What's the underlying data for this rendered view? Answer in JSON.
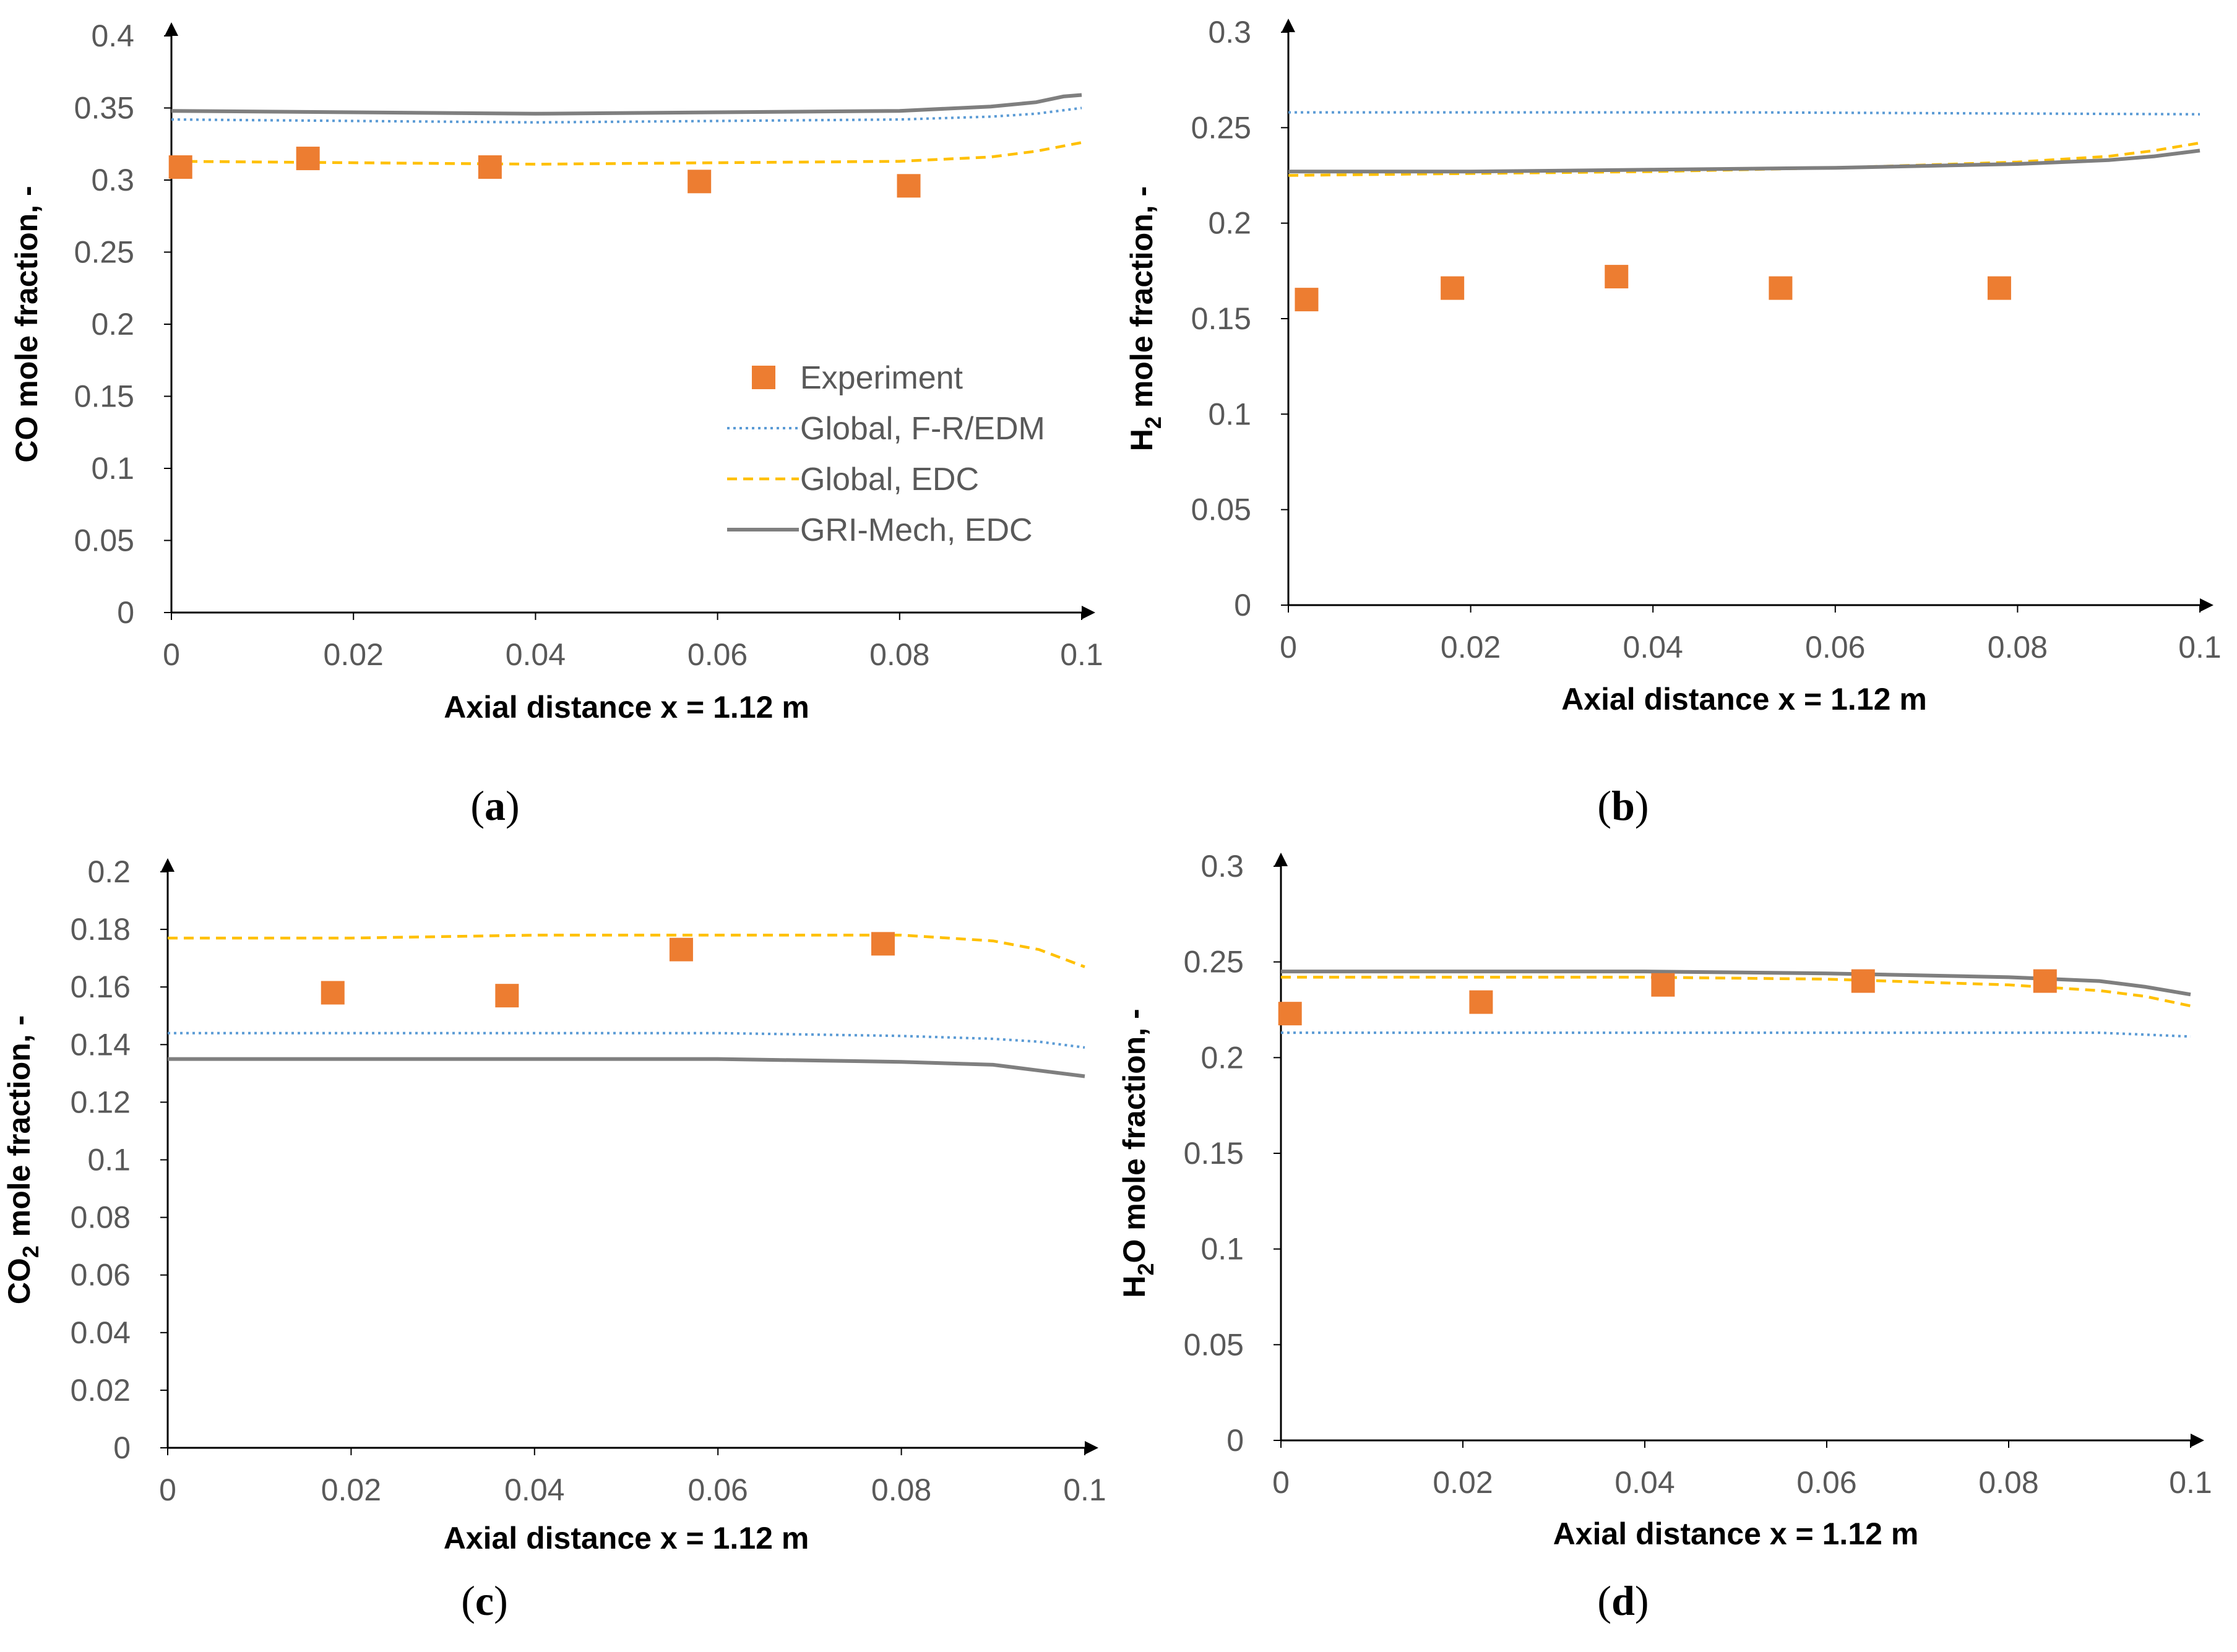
{
  "colors": {
    "experiment": "#ED7D31",
    "global_fr_edm": "#5B9BD5",
    "global_edc": "#FFC000",
    "gri_mech_edc": "#7F7F7F",
    "axis": "#000000",
    "tick_text": "#595959"
  },
  "chart_data": [
    {
      "id": "a",
      "type": "line",
      "caption_letter": "a",
      "ylabel": "CO mole fraction, -",
      "xlabel": "Axial distance x = 1.12 m",
      "xlim": [
        0,
        0.1
      ],
      "ylim": [
        0,
        0.4
      ],
      "xticks": [
        "0",
        "0.02",
        "0.04",
        "0.06",
        "0.08",
        "0.1"
      ],
      "yticks": [
        "0",
        "0.05",
        "0.1",
        "0.15",
        "0.2",
        "0.25",
        "0.3",
        "0.35",
        "0.4"
      ],
      "legend": [
        "Experiment",
        "Global, F-R/EDM",
        "Global, EDC",
        "GRI-Mech, EDC"
      ],
      "series": [
        {
          "name": "Experiment",
          "kind": "scatter",
          "x": [
            0.001,
            0.015,
            0.035,
            0.058,
            0.081
          ],
          "y": [
            0.309,
            0.315,
            0.309,
            0.299,
            0.296
          ]
        },
        {
          "name": "Global, F-R/EDM",
          "kind": "dotted",
          "x": [
            0,
            0.02,
            0.04,
            0.06,
            0.08,
            0.09,
            0.095,
            0.1
          ],
          "y": [
            0.342,
            0.341,
            0.34,
            0.341,
            0.342,
            0.344,
            0.346,
            0.35
          ]
        },
        {
          "name": "Global, EDC",
          "kind": "dashed",
          "x": [
            0,
            0.02,
            0.04,
            0.06,
            0.08,
            0.09,
            0.095,
            0.1
          ],
          "y": [
            0.313,
            0.312,
            0.311,
            0.312,
            0.313,
            0.316,
            0.32,
            0.326
          ]
        },
        {
          "name": "GRI-Mech, EDC",
          "kind": "solid",
          "x": [
            0,
            0.02,
            0.04,
            0.06,
            0.08,
            0.09,
            0.095,
            0.098,
            0.1
          ],
          "y": [
            0.348,
            0.347,
            0.346,
            0.347,
            0.348,
            0.351,
            0.354,
            0.358,
            0.359
          ]
        }
      ]
    },
    {
      "id": "b",
      "type": "line",
      "caption_letter": "b",
      "ylabel": "H2 mole fraction, -",
      "xlabel": "Axial distance x = 1.12 m",
      "xlim": [
        0,
        0.1
      ],
      "ylim": [
        0,
        0.3
      ],
      "xticks": [
        "0",
        "0.02",
        "0.04",
        "0.06",
        "0.08",
        "0.1"
      ],
      "yticks": [
        "0",
        "0.05",
        "0.1",
        "0.15",
        "0.2",
        "0.25",
        "0.3"
      ],
      "series": [
        {
          "name": "Experiment",
          "kind": "scatter",
          "x": [
            0.002,
            0.018,
            0.036,
            0.054,
            0.078
          ],
          "y": [
            0.16,
            0.166,
            0.172,
            0.166,
            0.166
          ]
        },
        {
          "name": "Global, F-R/EDM",
          "kind": "dotted",
          "x": [
            0,
            0.05,
            0.1
          ],
          "y": [
            0.258,
            0.258,
            0.257
          ]
        },
        {
          "name": "Global, EDC",
          "kind": "dashed",
          "x": [
            0,
            0.02,
            0.04,
            0.06,
            0.08,
            0.09,
            0.095,
            0.1
          ],
          "y": [
            0.225,
            0.226,
            0.227,
            0.229,
            0.232,
            0.235,
            0.238,
            0.242
          ]
        },
        {
          "name": "GRI-Mech, EDC",
          "kind": "solid",
          "x": [
            0,
            0.02,
            0.04,
            0.06,
            0.08,
            0.09,
            0.095,
            0.1
          ],
          "y": [
            0.227,
            0.227,
            0.228,
            0.229,
            0.231,
            0.233,
            0.235,
            0.238
          ]
        }
      ]
    },
    {
      "id": "c",
      "type": "line",
      "caption_letter": "c",
      "ylabel": "CO2 mole fraction, -",
      "xlabel": "Axial distance x = 1.12 m",
      "xlim": [
        0,
        0.1
      ],
      "ylim": [
        0,
        0.2
      ],
      "xticks": [
        "0",
        "0.02",
        "0.04",
        "0.06",
        "0.08",
        "0.1"
      ],
      "yticks": [
        "0",
        "0.02",
        "0.04",
        "0.06",
        "0.08",
        "0.1",
        "0.12",
        "0.14",
        "0.16",
        "0.18",
        "0.2"
      ],
      "series": [
        {
          "name": "Experiment",
          "kind": "scatter",
          "x": [
            0.018,
            0.037,
            0.056,
            0.078
          ],
          "y": [
            0.158,
            0.157,
            0.173,
            0.175
          ]
        },
        {
          "name": "Global, F-R/EDM",
          "kind": "dotted",
          "x": [
            0,
            0.02,
            0.04,
            0.06,
            0.08,
            0.09,
            0.095,
            0.1
          ],
          "y": [
            0.144,
            0.144,
            0.144,
            0.144,
            0.143,
            0.142,
            0.141,
            0.139
          ]
        },
        {
          "name": "Global, EDC",
          "kind": "dashed",
          "x": [
            0,
            0.02,
            0.04,
            0.06,
            0.08,
            0.09,
            0.095,
            0.1
          ],
          "y": [
            0.177,
            0.177,
            0.178,
            0.178,
            0.178,
            0.176,
            0.173,
            0.167
          ]
        },
        {
          "name": "GRI-Mech, EDC",
          "kind": "solid",
          "x": [
            0,
            0.02,
            0.04,
            0.06,
            0.08,
            0.09,
            0.095,
            0.1
          ],
          "y": [
            0.135,
            0.135,
            0.135,
            0.135,
            0.134,
            0.133,
            0.131,
            0.129
          ]
        }
      ]
    },
    {
      "id": "d",
      "type": "line",
      "caption_letter": "d",
      "ylabel": "H2O mole fraction, -",
      "xlabel": "Axial distance x = 1.12 m",
      "xlim": [
        0,
        0.1
      ],
      "ylim": [
        0,
        0.3
      ],
      "xticks": [
        "0",
        "0.02",
        "0.04",
        "0.06",
        "0.08",
        "0.1"
      ],
      "yticks": [
        "0",
        "0.05",
        "0.1",
        "0.15",
        "0.2",
        "0.25",
        "0.3"
      ],
      "series": [
        {
          "name": "Experiment",
          "kind": "scatter",
          "x": [
            0.001,
            0.022,
            0.042,
            0.064,
            0.084
          ],
          "y": [
            0.223,
            0.229,
            0.238,
            0.24,
            0.24
          ]
        },
        {
          "name": "Global, F-R/EDM",
          "kind": "dotted",
          "x": [
            0,
            0.05,
            0.09,
            0.1
          ],
          "y": [
            0.213,
            0.213,
            0.213,
            0.211
          ]
        },
        {
          "name": "Global, EDC",
          "kind": "dashed",
          "x": [
            0,
            0.02,
            0.04,
            0.06,
            0.08,
            0.09,
            0.095,
            0.1
          ],
          "y": [
            0.242,
            0.242,
            0.242,
            0.241,
            0.238,
            0.235,
            0.232,
            0.227
          ]
        },
        {
          "name": "GRI-Mech, EDC",
          "kind": "solid",
          "x": [
            0,
            0.02,
            0.04,
            0.06,
            0.08,
            0.09,
            0.095,
            0.1
          ],
          "y": [
            0.245,
            0.245,
            0.245,
            0.244,
            0.242,
            0.24,
            0.237,
            0.233
          ]
        }
      ]
    }
  ]
}
